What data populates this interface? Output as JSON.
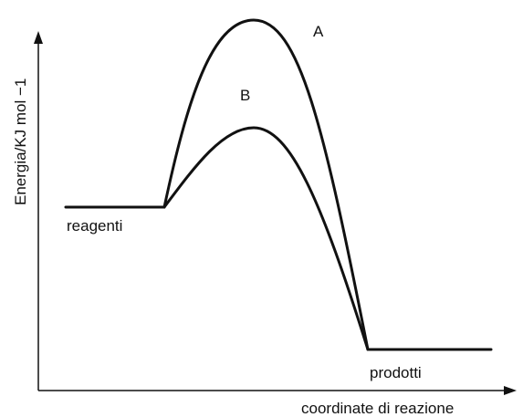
{
  "axes": {
    "y_label": "Energia/KJ mol −1",
    "x_label": "coordinate di reazione"
  },
  "curves": [
    {
      "label": "A"
    },
    {
      "label": "B"
    }
  ],
  "levels": {
    "reactants": "reagenti",
    "products": "prodotti"
  }
}
